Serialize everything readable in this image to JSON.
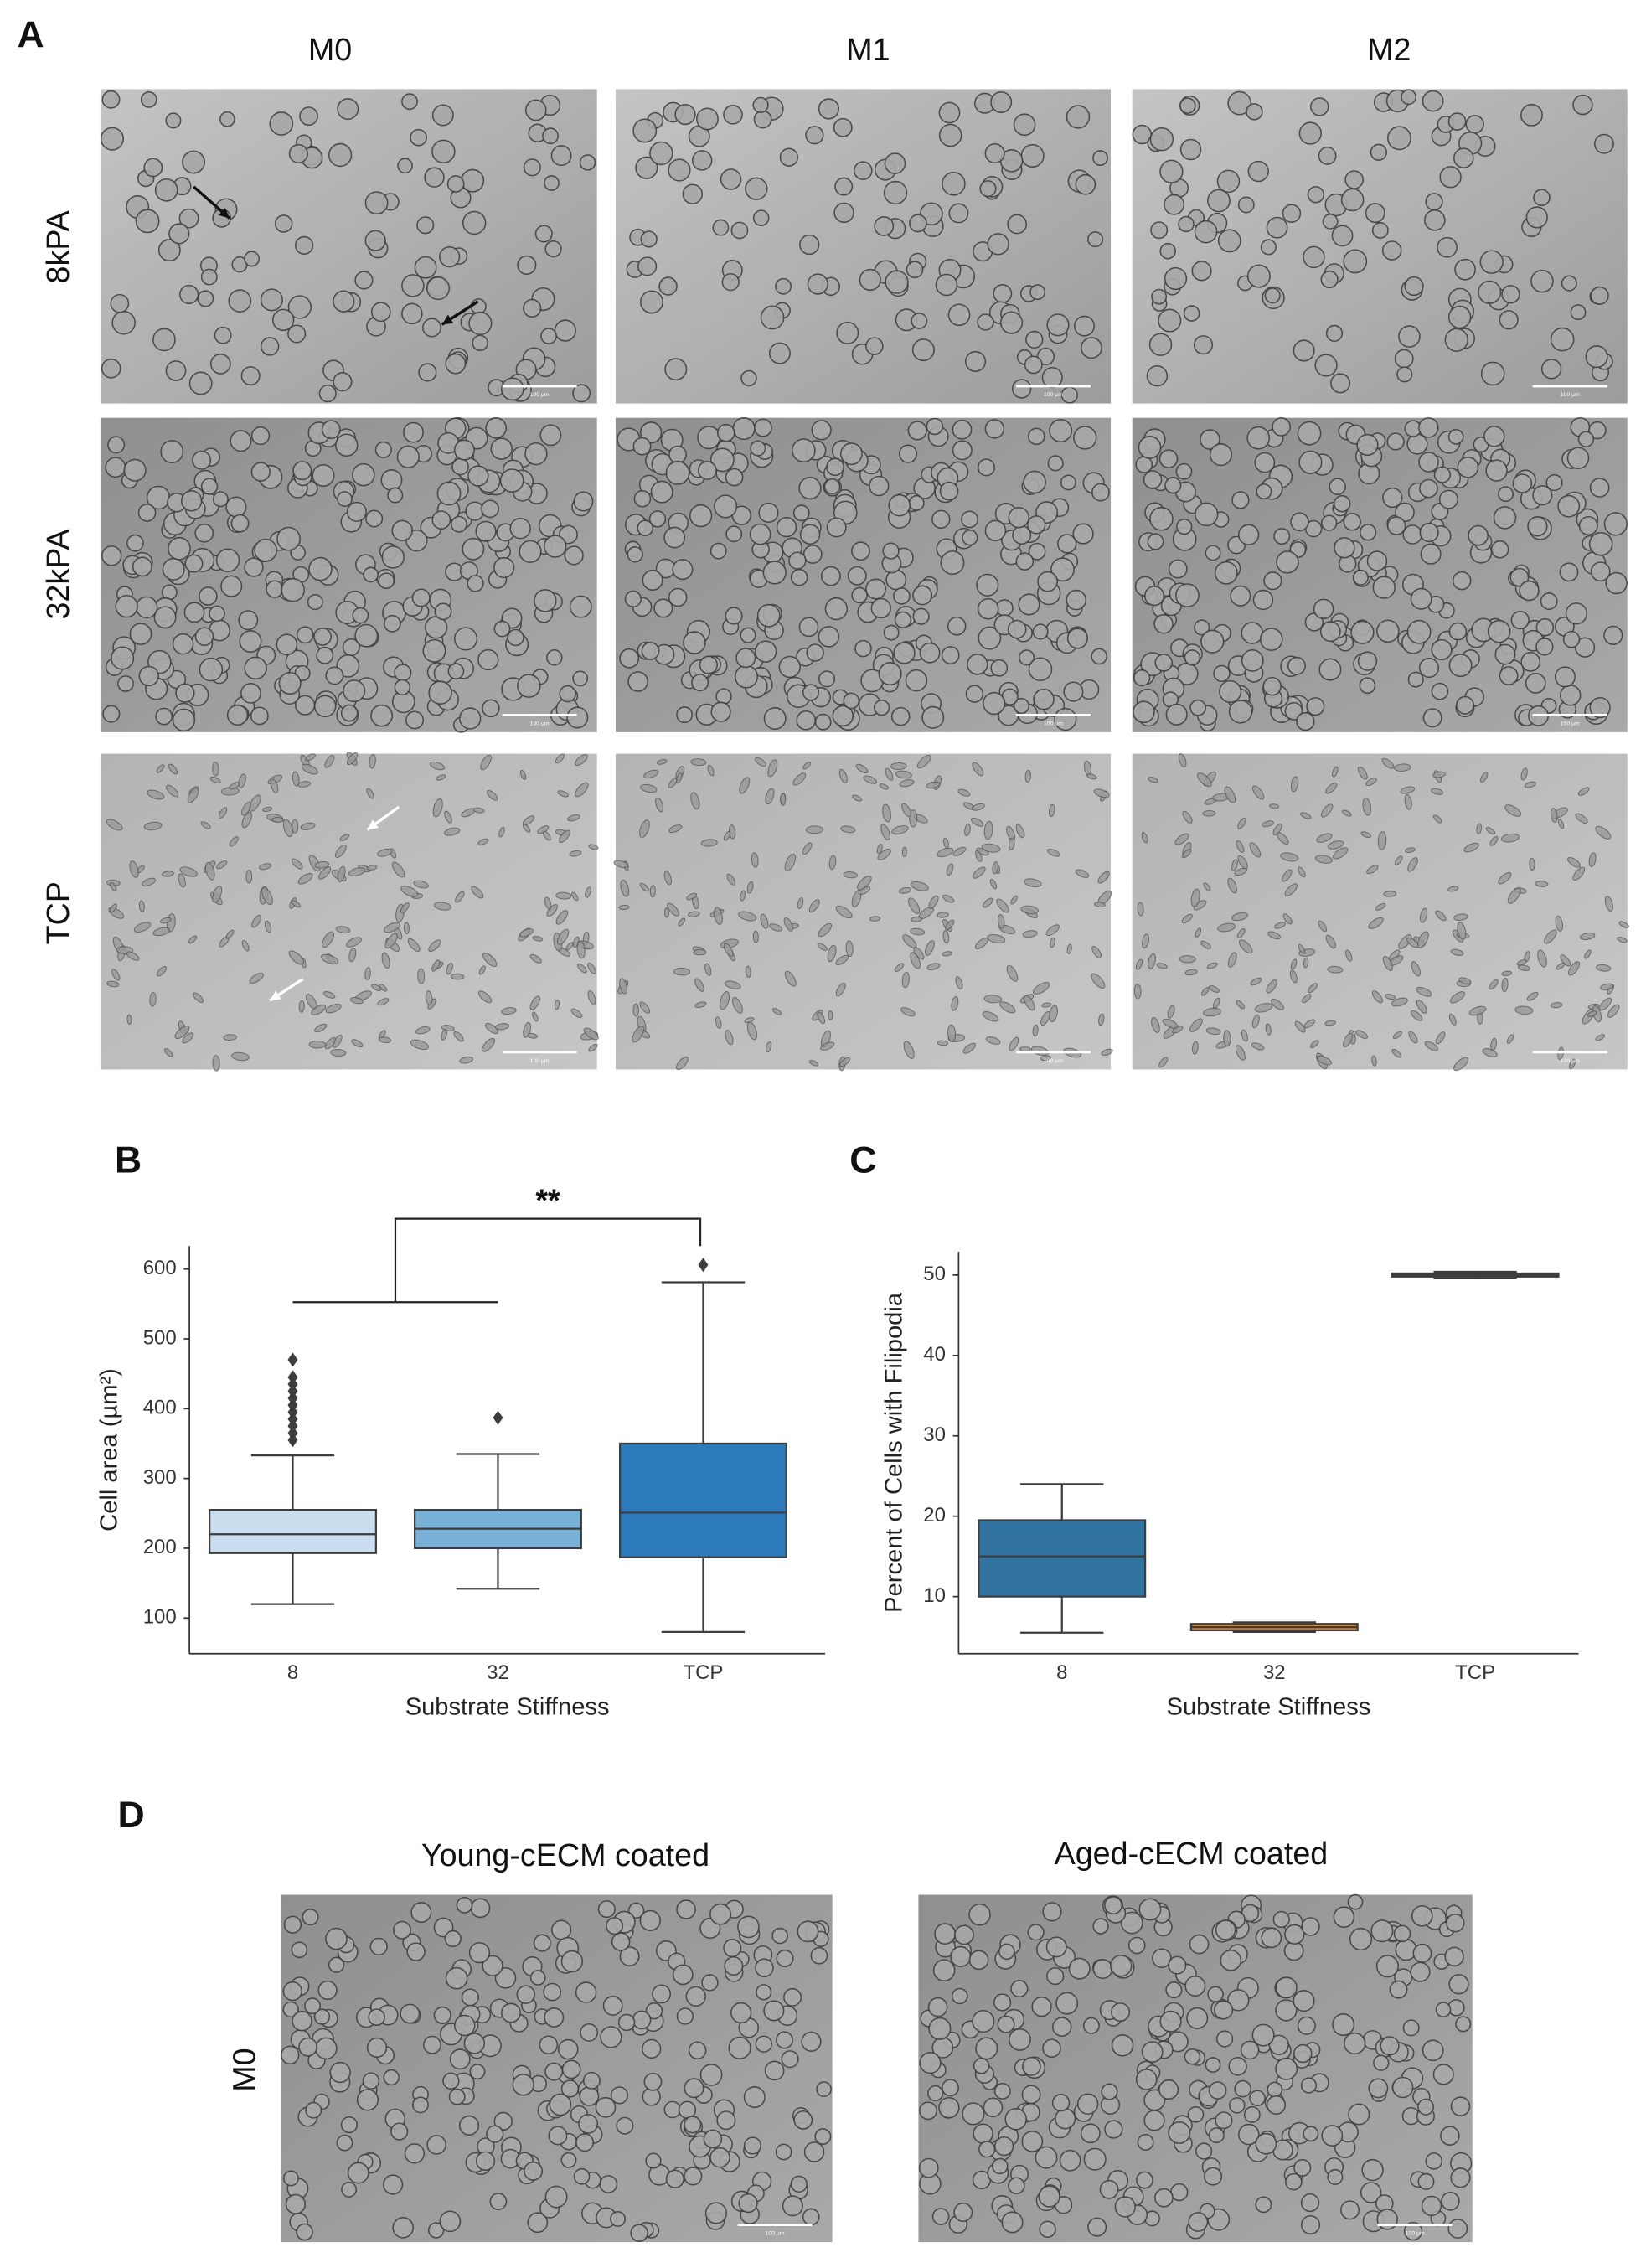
{
  "panel_a": {
    "label": "A",
    "columns": [
      "M0",
      "M1",
      "M2"
    ],
    "rows": [
      "8kPA",
      "32kPA",
      "TCP"
    ],
    "scale_bar": "100 µm"
  },
  "chart_data": [
    {
      "type": "box",
      "label": "B",
      "ylabel": "Cell area (µm²)",
      "xlabel": "Substrate Stiffness",
      "annotation": "**",
      "categories": [
        "8",
        "32",
        "TCP"
      ],
      "colors": [
        "#cadef0",
        "#79b0d8",
        "#2d7bba"
      ],
      "boxes": [
        {
          "whislo": 120,
          "q1": 193,
          "med": 220,
          "q3": 255,
          "whishi": 333,
          "fliers": [
            355,
            365,
            375,
            385,
            395,
            405,
            415,
            425,
            435,
            445,
            470
          ]
        },
        {
          "whislo": 142,
          "q1": 200,
          "med": 228,
          "q3": 255,
          "whishi": 335,
          "fliers": [
            387
          ]
        },
        {
          "whislo": 80,
          "q1": 187,
          "med": 251,
          "q3": 350,
          "whishi": 581,
          "fliers": [
            606
          ]
        }
      ],
      "ylim": [
        49,
        633
      ],
      "yticks": [
        100,
        200,
        300,
        400,
        500,
        600
      ]
    },
    {
      "type": "box",
      "label": "C",
      "ylabel": "Percent of Cells with Filipodia",
      "xlabel": "Substrate Stiffness",
      "categories": [
        "8",
        "32",
        "TCP"
      ],
      "colors": [
        "#3274a1",
        "#e1812c",
        "#3a923a"
      ],
      "boxes": [
        {
          "whislo": 5.5,
          "q1": 10,
          "med": 15,
          "q3": 19.5,
          "whishi": 24,
          "fliers": []
        },
        {
          "whislo": 5.6,
          "q1": 5.8,
          "med": 6.2,
          "q3": 6.6,
          "whishi": 6.8,
          "fliers": []
        },
        {
          "whislo": 49.6,
          "q1": 49.8,
          "med": 50,
          "q3": 50.2,
          "whishi": 50.4,
          "fliers": []
        }
      ],
      "ylim": [
        2.9,
        52.9
      ],
      "yticks": [
        10,
        20,
        30,
        40,
        50
      ]
    }
  ],
  "panel_d": {
    "label": "D",
    "columns": [
      "Young-cECM coated",
      "Aged-cECM coated"
    ],
    "rows": [
      "M0"
    ],
    "scale_bar": "100 µm"
  }
}
